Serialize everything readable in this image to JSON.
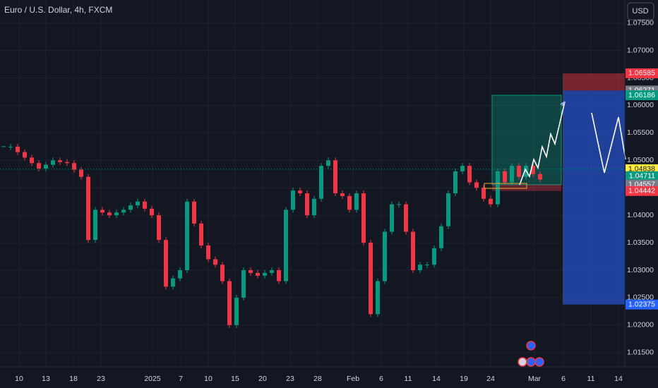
{
  "chart_data": {
    "type": "candlestick",
    "title": "Euro / U.S. Dollar, 4h, FXCM",
    "currency": "USD",
    "up_color": "#089981",
    "down_color": "#f23645",
    "grid": true,
    "ylim": [
      1.0124,
      1.0792
    ],
    "yticks": [
      {
        "value": 1.075,
        "label": "1.07500"
      },
      {
        "value": 1.07,
        "label": "1.07000"
      },
      {
        "value": 1.065,
        "label": "1.06500"
      },
      {
        "value": 1.06,
        "label": "1.06000"
      },
      {
        "value": 1.055,
        "label": "1.05500"
      },
      {
        "value": 1.05,
        "label": "1.05000"
      },
      {
        "value": 1.045,
        "label": "1.04500"
      },
      {
        "value": 1.04,
        "label": "1.04000"
      },
      {
        "value": 1.035,
        "label": "1.03500"
      },
      {
        "value": 1.03,
        "label": "1.03000"
      },
      {
        "value": 1.025,
        "label": "1.02500"
      },
      {
        "value": 1.02,
        "label": "1.02000"
      },
      {
        "value": 1.015,
        "label": "1.01500"
      }
    ],
    "x_labels": [
      "10",
      "13",
      "18",
      "23",
      "2025",
      "7",
      "10",
      "15",
      "20",
      "23",
      "28",
      "Feb",
      "6",
      "11",
      "14",
      "19",
      "24",
      "Mar",
      "6",
      "11",
      "14"
    ],
    "closes": [
      1.0525,
      1.0525,
      1.0515,
      1.0505,
      1.0495,
      1.0485,
      1.0492,
      1.05,
      1.0497,
      1.0495,
      1.0483,
      1.047,
      1.0355,
      1.041,
      1.0405,
      1.04,
      1.0405,
      1.041,
      1.0418,
      1.0425,
      1.0412,
      1.04,
      1.0355,
      1.027,
      1.0285,
      1.03,
      1.0425,
      1.0385,
      1.0345,
      1.032,
      1.031,
      1.028,
      1.02,
      1.025,
      1.03,
      1.0295,
      1.029,
      1.0295,
      1.03,
      1.028,
      1.041,
      1.0445,
      1.044,
      1.04,
      1.043,
      1.049,
      1.05,
      1.044,
      1.0435,
      1.041,
      1.044,
      1.035,
      1.022,
      1.028,
      1.037,
      1.042,
      1.042,
      1.037,
      1.03,
      1.031,
      1.031,
      1.034,
      1.038,
      1.044,
      1.048,
      1.049,
      1.046,
      1.045,
      1.043,
      1.042,
      1.048,
      1.046,
      1.049,
      1.047,
      1.049,
      1.0475,
      1.0465
    ],
    "price_labels": [
      {
        "value": 1.06585,
        "label": "1.06585",
        "color": "#f23645"
      },
      {
        "value": 1.06271,
        "label": "1.06271",
        "color": "#787b86"
      },
      {
        "value": 1.06186,
        "label": "1.06186",
        "color": "#089981"
      },
      {
        "value": 1.04838,
        "label": "1.04838",
        "color": "#ffeb3b"
      },
      {
        "value": 1.04711,
        "label": "1.04711",
        "color": "#089981"
      },
      {
        "value": 1.04557,
        "label": "1.04557",
        "color": "#787b86"
      },
      {
        "value": 1.04442,
        "label": "1.04442",
        "color": "#f23645"
      },
      {
        "value": 1.02375,
        "label": "1.02375",
        "color": "#2962ff"
      }
    ]
  }
}
